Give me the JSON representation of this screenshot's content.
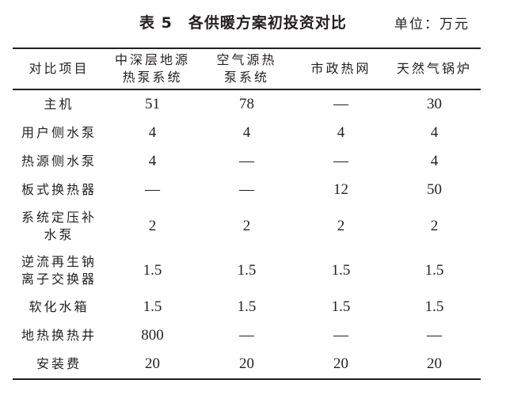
{
  "title": "表 5　各供暖方案初投资对比",
  "unit": "单位：万元",
  "columns": [
    "对比项目",
    "中深层地源\n热泵系统",
    "空气源热\n泵系统",
    "市政热网",
    "天然气锅炉"
  ],
  "rows": [
    {
      "item": "主机",
      "values": [
        "51",
        "78",
        "—",
        "30"
      ]
    },
    {
      "item": "用户侧水泵",
      "values": [
        "4",
        "4",
        "4",
        "4"
      ]
    },
    {
      "item": "热源侧水泵",
      "values": [
        "4",
        "—",
        "—",
        "4"
      ]
    },
    {
      "item": "板式换热器",
      "values": [
        "—",
        "—",
        "12",
        "50"
      ]
    },
    {
      "item": "系统定压补\n水泵",
      "values": [
        "2",
        "2",
        "2",
        "2"
      ]
    },
    {
      "item": "逆流再生钠\n离子交换器",
      "values": [
        "1.5",
        "1.5",
        "1.5",
        "1.5"
      ]
    },
    {
      "item": "软化水箱",
      "values": [
        "1.5",
        "1.5",
        "1.5",
        "1.5"
      ]
    },
    {
      "item": "地热换热井",
      "values": [
        "800",
        "—",
        "—",
        "—"
      ]
    },
    {
      "item": "安装费",
      "values": [
        "20",
        "20",
        "20",
        "20"
      ]
    }
  ]
}
